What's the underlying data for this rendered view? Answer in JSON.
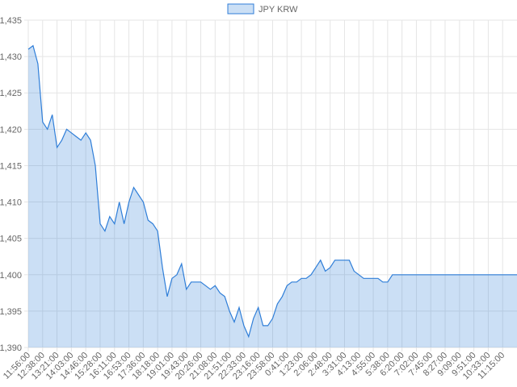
{
  "chart_data": {
    "type": "line",
    "fill": true,
    "grid": true,
    "legend": "top",
    "categories": [
      "11:56:00",
      null,
      null,
      "12:38:00",
      null,
      null,
      "13:21:00",
      null,
      null,
      "14:03:00",
      null,
      null,
      "14:46:00",
      null,
      null,
      "15:28:00",
      null,
      null,
      "16:11:00",
      null,
      null,
      "16:53:00",
      null,
      null,
      "17:36:00",
      null,
      null,
      "18:18:00",
      null,
      null,
      "19:01:00",
      null,
      null,
      "19:43:00",
      null,
      null,
      "20:26:00",
      null,
      null,
      "21:08:00",
      null,
      null,
      "21:51:00",
      null,
      null,
      "22:33:00",
      null,
      null,
      "23:16:00",
      null,
      null,
      "23:58:00",
      null,
      null,
      "0:41:00",
      null,
      null,
      "1:23:00",
      null,
      null,
      "2:06:00",
      null,
      null,
      "2:48:00",
      null,
      null,
      "3:31:00",
      null,
      null,
      "4:13:00",
      null,
      null,
      "4:55:00",
      null,
      null,
      "5:38:00",
      null,
      null,
      "6:20:00",
      null,
      null,
      "7:02:00",
      null,
      null,
      "7:45:00",
      null,
      null,
      "8:27:00",
      null,
      null,
      "9:09:00",
      null,
      null,
      "9:51:00",
      null,
      null,
      "10:33:00",
      null,
      null,
      "11:15:00",
      null,
      null,
      null
    ],
    "series": [
      {
        "name": "JPY KRW",
        "color": "#2f7ed8",
        "fill_color": "rgba(47,126,216,0.25)",
        "values": [
          1431,
          1431.5,
          1429,
          1421,
          1420,
          1422,
          1417.5,
          1418.5,
          1420,
          1419.5,
          1419,
          1418.5,
          1419.5,
          1418.5,
          1415,
          1407,
          1406,
          1408,
          1407,
          1410,
          1407,
          1410,
          1412,
          1411,
          1410,
          1407.5,
          1407,
          1406,
          1401,
          1397,
          1399.5,
          1400,
          1401.5,
          1398,
          1399,
          1399,
          1399,
          1398.5,
          1398,
          1398.5,
          1397.5,
          1397,
          1395,
          1393.5,
          1395.5,
          1393,
          1391.5,
          1394,
          1395.5,
          1393,
          1393,
          1394,
          1396,
          1397,
          1398.5,
          1399,
          1399,
          1399.5,
          1399.5,
          1400,
          1401,
          1402,
          1400.5,
          1401,
          1402,
          1402,
          1402,
          1402,
          1400.5,
          1400,
          1399.5,
          1399.5,
          1399.5,
          1399.5,
          1399,
          1399,
          1400,
          1400,
          1400,
          1400,
          1400,
          1400,
          1400,
          1400,
          1400,
          1400,
          1400,
          1400,
          1400,
          1400,
          1400,
          1400,
          1400,
          1400,
          1400,
          1400,
          1400,
          1400,
          1400,
          1400,
          1400,
          1400,
          1400
        ]
      }
    ],
    "ylim": [
      1390,
      1435
    ],
    "yticks": [
      {
        "value": 1390,
        "label": "1,390"
      },
      {
        "value": 1395,
        "label": "1,395"
      },
      {
        "value": 1400,
        "label": "1,400"
      },
      {
        "value": 1405,
        "label": "1,405"
      },
      {
        "value": 1410,
        "label": "1,410"
      },
      {
        "value": 1415,
        "label": "1,415"
      },
      {
        "value": 1420,
        "label": "1,420"
      },
      {
        "value": 1425,
        "label": "1,425"
      },
      {
        "value": 1430,
        "label": "1,430"
      },
      {
        "value": 1435,
        "label": "1,435"
      }
    ]
  }
}
